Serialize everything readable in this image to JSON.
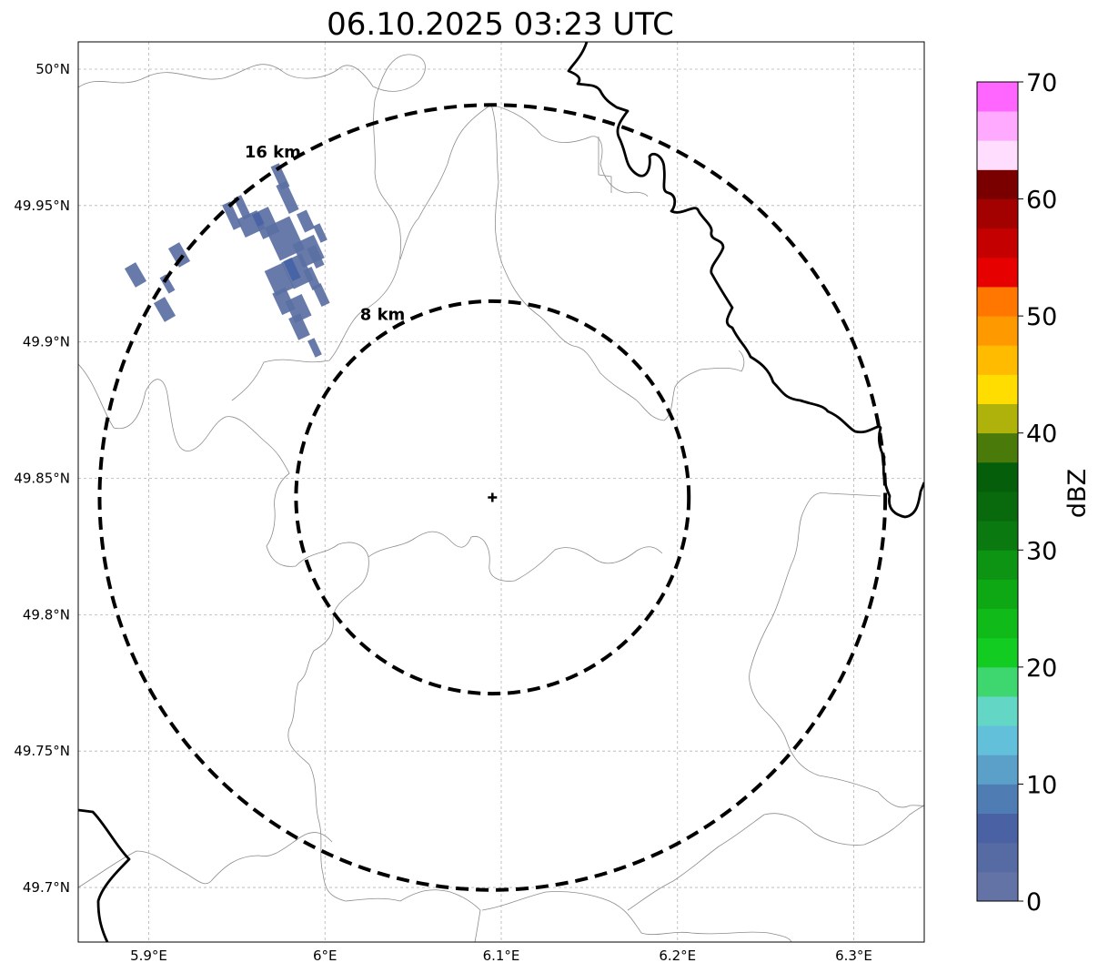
{
  "title": "06.10.2025 03:23 UTC",
  "map": {
    "lon_range": [
      5.86,
      6.34
    ],
    "lat_range": [
      49.68,
      50.01
    ],
    "x_ticks": [
      {
        "value": 5.9,
        "label": "5.9°E"
      },
      {
        "value": 6.0,
        "label": "6°E"
      },
      {
        "value": 6.1,
        "label": "6.1°E"
      },
      {
        "value": 6.2,
        "label": "6.2°E"
      },
      {
        "value": 6.3,
        "label": "6.3°E"
      }
    ],
    "y_ticks": [
      {
        "value": 50.0,
        "label": "50°N"
      },
      {
        "value": 49.95,
        "label": "49.95°N"
      },
      {
        "value": 49.9,
        "label": "49.9°N"
      },
      {
        "value": 49.85,
        "label": "49.85°N"
      },
      {
        "value": 49.8,
        "label": "49.8°N"
      },
      {
        "value": 49.75,
        "label": "49.75°N"
      },
      {
        "value": 49.7,
        "label": "49.7°N"
      }
    ],
    "grid": true,
    "radar_center": {
      "lon": 6.095,
      "lat": 49.843
    },
    "rings": [
      {
        "radius_km": 8,
        "label": "8 km"
      },
      {
        "radius_km": 16,
        "label": "16 km"
      }
    ],
    "echo_color": "#5a6fa3"
  },
  "colorbar": {
    "label": "dBZ",
    "min": 0,
    "max": 70,
    "step": 2.5,
    "tick_labels": [
      "0",
      "10",
      "20",
      "30",
      "40",
      "50",
      "60",
      "70"
    ],
    "colors": [
      "#6473a6",
      "#566aa3",
      "#4a62a4",
      "#4f7cb3",
      "#5aa0c8",
      "#62c0db",
      "#63d6c6",
      "#3ed66e",
      "#12cc22",
      "#10ba18",
      "#0ea814",
      "#0c9412",
      "#0a7a10",
      "#086a0c",
      "#045e0a",
      "#4a7a0a",
      "#aeb20a",
      "#ffdd00",
      "#ffbb00",
      "#ff9900",
      "#ff7700",
      "#e60000",
      "#c40000",
      "#a30000",
      "#7a0000",
      "#ffddff",
      "#ffaaff",
      "#ff66ff",
      "#ee33ee"
    ]
  }
}
